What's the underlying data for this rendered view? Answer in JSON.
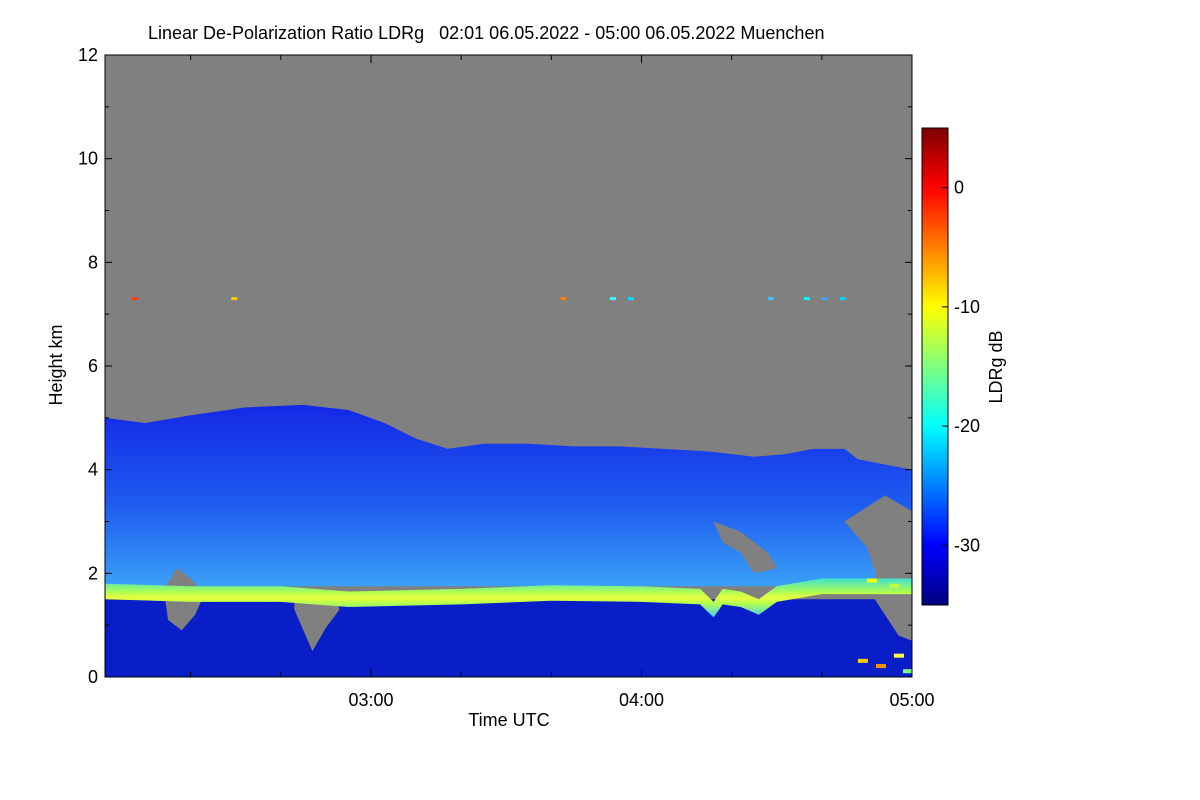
{
  "chart_data": {
    "type": "heatmap",
    "title": "Linear De-Polarization Ratio LDRg   02:01 06.05.2022 - 05:00 06.05.2022 Muenchen",
    "xlabel": "Time UTC",
    "ylabel": "Height km",
    "xlim": [
      "02:01",
      "05:00"
    ],
    "ylim": [
      0,
      12
    ],
    "x_ticks": [
      "03:00",
      "04:00",
      "05:00"
    ],
    "y_ticks": [
      0,
      2,
      4,
      6,
      8,
      10,
      12
    ],
    "colorbar": {
      "label": "LDRg dB",
      "range": [
        -35,
        5
      ],
      "ticks": [
        0,
        -10,
        -20,
        -30
      ],
      "colors": [
        "#00007f",
        "#0000ff",
        "#007fff",
        "#00ffff",
        "#7fff7f",
        "#ffff00",
        "#ff7f00",
        "#ff0000",
        "#7f0000"
      ]
    },
    "no_signal_color": "#808080",
    "layers": [
      {
        "name": "",
        "height_km": [
          0,
          1.4
        ],
        "ldr_db": -33
      },
      {
        "name": "",
        "height_km": [
          1.4,
          1.8
        ],
        "ldr_db": -14
      },
      {
        "name": "",
        "height_km": [
          1.8,
          5.2
        ],
        "ldr_db": -28
      },
      {
        "name": "",
        "height_km": [
          7.2,
          7.4
        ],
        "ldr_db": -12
      }
    ]
  }
}
